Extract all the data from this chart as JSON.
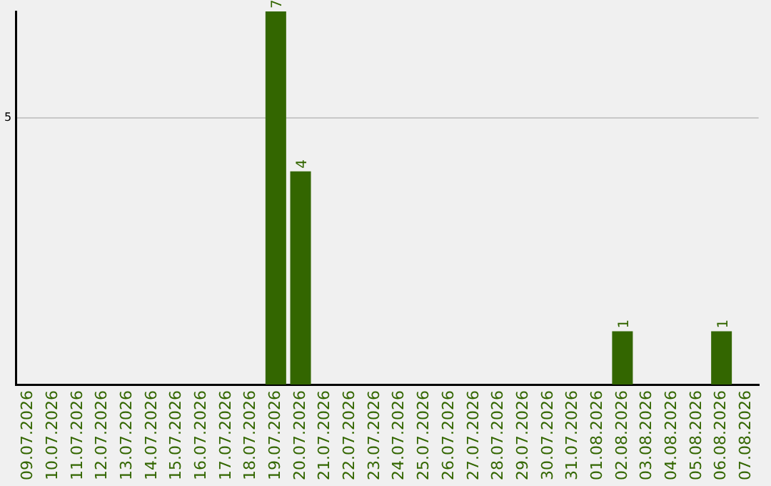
{
  "chart_data": {
    "type": "bar",
    "categories": [
      "09.07.2026",
      "10.07.2026",
      "11.07.2026",
      "12.07.2026",
      "13.07.2026",
      "14.07.2026",
      "15.07.2026",
      "16.07.2026",
      "17.07.2026",
      "18.07.2026",
      "19.07.2026",
      "20.07.2026",
      "21.07.2026",
      "22.07.2026",
      "23.07.2026",
      "24.07.2026",
      "25.07.2026",
      "26.07.2026",
      "27.07.2026",
      "28.07.2026",
      "29.07.2026",
      "30.07.2026",
      "31.07.2026",
      "01.08.2026",
      "02.08.2026",
      "03.08.2026",
      "04.08.2026",
      "05.08.2026",
      "06.08.2026",
      "07.08.2026"
    ],
    "values": [
      0,
      0,
      0,
      0,
      0,
      0,
      0,
      0,
      0,
      0,
      7,
      4,
      0,
      0,
      0,
      0,
      0,
      0,
      0,
      0,
      0,
      0,
      0,
      0,
      1,
      0,
      0,
      0,
      1,
      0
    ],
    "value_labels": [
      null,
      null,
      null,
      null,
      null,
      null,
      null,
      null,
      null,
      null,
      "7",
      "4",
      null,
      null,
      null,
      null,
      null,
      null,
      null,
      null,
      null,
      null,
      null,
      null,
      "1",
      null,
      null,
      null,
      "1",
      null
    ],
    "color": "#336600",
    "ylim": [
      0,
      7
    ],
    "yticks": [
      5
    ],
    "grid": "y",
    "legend": false
  }
}
